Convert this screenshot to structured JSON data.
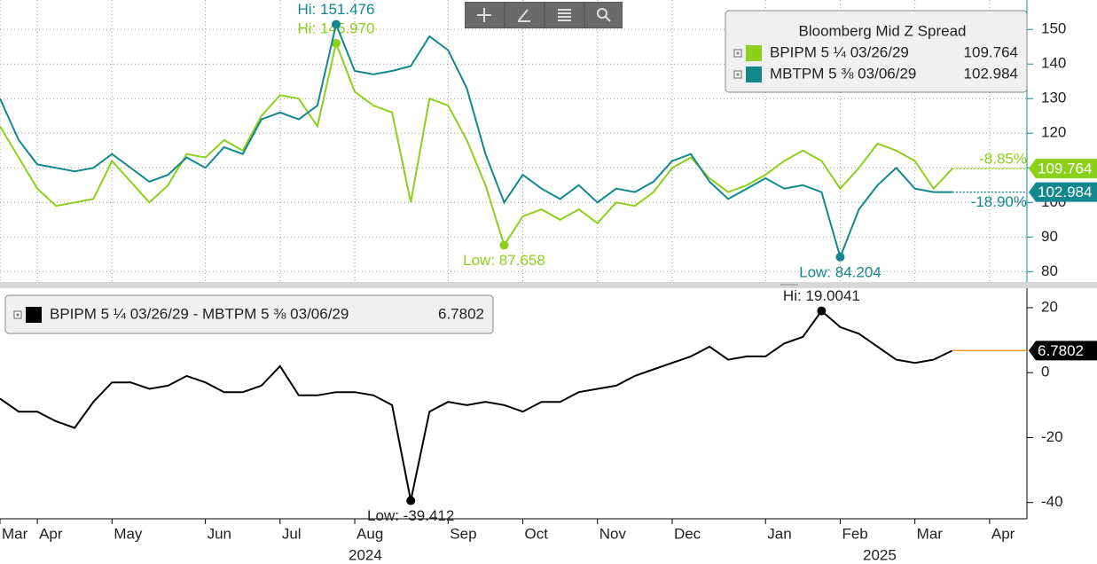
{
  "chart_data": [
    {
      "type": "line",
      "title": "Bloomberg Mid Z Spread",
      "ylim": [
        77,
        158
      ],
      "yticks": [
        80,
        90,
        100,
        110,
        120,
        130,
        140,
        150
      ],
      "grid": true,
      "series": [
        {
          "name": "BPIPM 5 ¼ 03/26/29",
          "color": "#8cd01c",
          "hi_label": "Hi: 145.970",
          "low_label": "Low: 87.658",
          "change_label": "-8.85%",
          "values": [
            122,
            113,
            104,
            99,
            100,
            101,
            112,
            106,
            100,
            105,
            114,
            113,
            118,
            115,
            125,
            131,
            130,
            122,
            145.97,
            132,
            128,
            126,
            100,
            130,
            128,
            118,
            105,
            87.658,
            96,
            98,
            95,
            98,
            94,
            100,
            99,
            103,
            110,
            113,
            107,
            103,
            105,
            108,
            112,
            115,
            112,
            104,
            110,
            117,
            115,
            112,
            104,
            109.764,
            null,
            null,
            null,
            null
          ]
        },
        {
          "name": "MBTPM 5 ⅜ 03/06/29",
          "color": "#12888e",
          "hi_label": "Hi: 151.476",
          "low_label": "Low: 84.204",
          "change_label": "-18.90%",
          "values": [
            130,
            118,
            111,
            110,
            109,
            110,
            114,
            110,
            106,
            108,
            113,
            110,
            116,
            114,
            124,
            126,
            124,
            128,
            151.476,
            138,
            137,
            138,
            139.412,
            148,
            144,
            133,
            114,
            100,
            108,
            104,
            101,
            105,
            100,
            104,
            103,
            106,
            112,
            114,
            106,
            101,
            104,
            107,
            104,
            105,
            103,
            84.204,
            98,
            105,
            110,
            104,
            103,
            102.984,
            null,
            null,
            null,
            null
          ]
        }
      ]
    },
    {
      "type": "line",
      "ylim": [
        -45,
        26
      ],
      "yticks": [
        -40,
        -20,
        0,
        20
      ],
      "grid": false,
      "categories": [
        "Mar",
        null,
        "Apr",
        null,
        null,
        null,
        "May",
        null,
        null,
        null,
        null,
        "Jun",
        null,
        null,
        null,
        "Jul",
        null,
        null,
        null,
        "Aug",
        null,
        null,
        null,
        null,
        "Sep",
        null,
        null,
        null,
        "Oct",
        null,
        null,
        null,
        "Nov",
        null,
        null,
        null,
        "Dec",
        null,
        null,
        null,
        null,
        "Jan",
        null,
        null,
        null,
        "Feb",
        null,
        null,
        null,
        "Mar",
        null,
        null,
        null,
        "Apr",
        null,
        null
      ],
      "x_group_labels": [
        "2024",
        "2025"
      ],
      "series": [
        {
          "name": "BPIPM 5 ¼ 03/26/29 - MBTPM 5 ⅜ 03/06/29",
          "color": "#000000",
          "last_color": "#f7941d",
          "hi_label": "Hi: 19.0041",
          "low_label": "Low: -39.412",
          "values": [
            -8,
            -12,
            -12,
            -15,
            -17,
            -9,
            -3,
            -3,
            -5,
            -4,
            -1,
            -3,
            -6,
            -6,
            -4,
            2,
            -7,
            -7,
            -6,
            -6,
            -7,
            -10,
            -39.412,
            -12,
            -9,
            -10,
            -9,
            -10,
            -12,
            -9,
            -9,
            -6,
            -5,
            -4,
            -1,
            1,
            3,
            5,
            8,
            4,
            5,
            5,
            9,
            11,
            19.0041,
            14,
            12,
            8,
            4,
            3,
            4,
            6.7802,
            null,
            null,
            null,
            null
          ]
        }
      ]
    }
  ]
}
